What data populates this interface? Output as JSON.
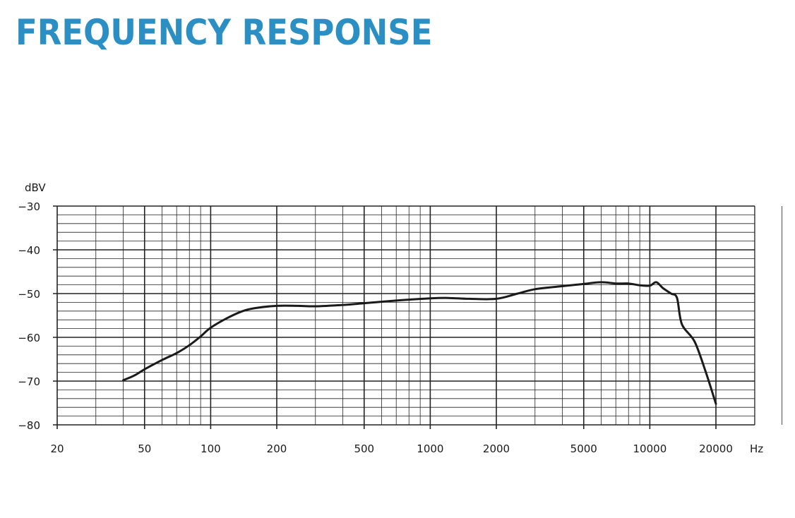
{
  "page": {
    "title": "FREQUENCY RESPONSE",
    "title_color": "#2b8fc3"
  },
  "chart_data": {
    "type": "line",
    "title": "FREQUENCY RESPONSE",
    "xlabel": "Hz",
    "ylabel": "dBV",
    "x_scale": "log",
    "xlim": [
      20,
      40000
    ],
    "ylim": [
      -80,
      -30
    ],
    "grid": true,
    "x_ticks": [
      20,
      50,
      100,
      200,
      500,
      1000,
      2000,
      5000,
      10000,
      20000
    ],
    "x_tick_labels": [
      "20",
      "50",
      "100",
      "200",
      "500",
      "1000",
      "2000",
      "5000",
      "10000",
      "20000"
    ],
    "y_ticks": [
      -30,
      -40,
      -50,
      -60,
      -70,
      -80
    ],
    "y_tick_labels": [
      "−30",
      "−40",
      "−50",
      "−60",
      "−70",
      "−80"
    ],
    "line_color": "#1a1a1a",
    "series": [
      {
        "x": [
          40,
          45,
          50,
          60,
          70,
          80,
          90,
          100,
          120,
          140,
          160,
          200,
          250,
          300,
          400,
          500,
          700,
          1000,
          1200,
          1500,
          2000,
          2500,
          3000,
          4000,
          5000,
          6000,
          7000,
          8000,
          9000,
          10000,
          10700,
          11500,
          12500,
          13300,
          14000,
          16000,
          18000,
          20000
        ],
        "y": [
          -69.8,
          -68.7,
          -67.3,
          -65.2,
          -63.6,
          -61.8,
          -59.8,
          -57.8,
          -55.5,
          -54.0,
          -53.3,
          -52.8,
          -52.8,
          -52.9,
          -52.6,
          -52.2,
          -51.6,
          -51.1,
          -51.0,
          -51.2,
          -51.2,
          -50.0,
          -49.0,
          -48.3,
          -47.8,
          -47.4,
          -47.7,
          -47.7,
          -48.1,
          -48.2,
          -47.4,
          -48.8,
          -50.0,
          -51.0,
          -57.0,
          -61.0,
          -68.0,
          -75.2
        ]
      }
    ]
  }
}
